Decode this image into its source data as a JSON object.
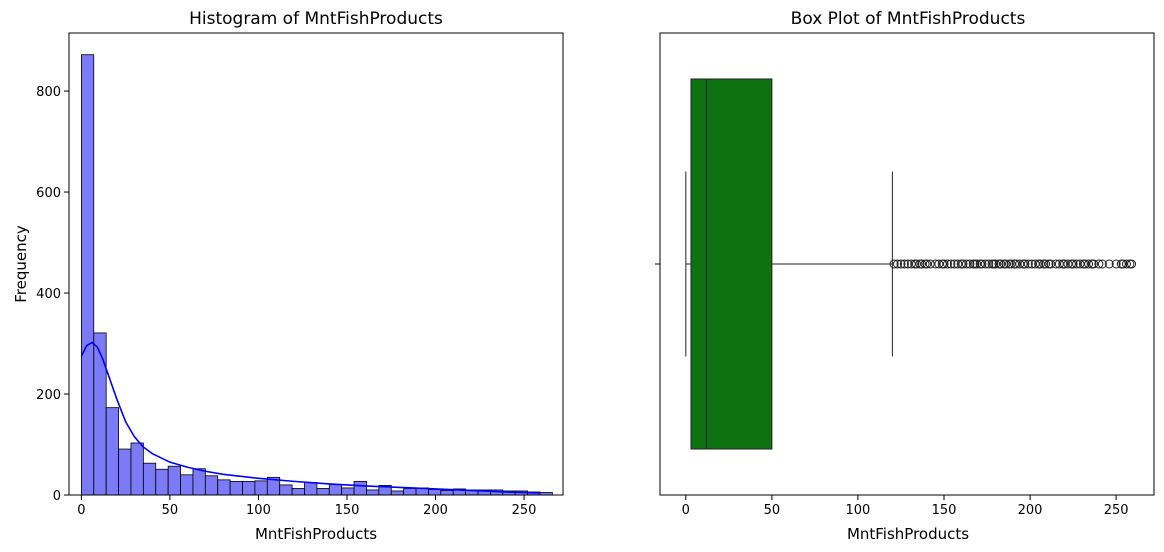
{
  "chart_data": [
    {
      "type": "histogram",
      "title": "Histogram of MntFishProducts",
      "xlabel": "MntFishProducts",
      "ylabel": "Frequency",
      "xlim": [
        -7,
        272
      ],
      "ylim": [
        0,
        915
      ],
      "x_ticks": [
        0,
        50,
        100,
        150,
        200,
        250
      ],
      "y_ticks": [
        0,
        200,
        400,
        600,
        800
      ],
      "bin_width": 7,
      "bin_start": 0,
      "values": [
        872,
        321,
        173,
        91,
        103,
        63,
        51,
        57,
        40,
        52,
        38,
        30,
        27,
        27,
        28,
        35,
        20,
        13,
        25,
        13,
        21,
        14,
        27,
        10,
        19,
        8,
        13,
        14,
        11,
        9,
        12,
        10,
        10,
        10,
        8,
        8,
        6,
        5
      ],
      "bar_color": "#7b7bf7",
      "bar_edge_color": "#000000",
      "kde": {
        "color": "#0000ff",
        "x": [
          0,
          3,
          6,
          9,
          12,
          15,
          20,
          25,
          30,
          35,
          40,
          50,
          60,
          70,
          80,
          90,
          100,
          120,
          140,
          160,
          180,
          200,
          220,
          240,
          259
        ],
        "y": [
          275,
          296,
          302,
          293,
          270,
          240,
          190,
          145,
          115,
          95,
          82,
          65,
          55,
          47,
          41,
          37,
          33,
          27,
          22,
          18,
          15,
          12,
          9,
          6,
          4
        ]
      }
    },
    {
      "type": "box",
      "title": "Box Plot of MntFishProducts",
      "xlabel": "MntFishProducts",
      "xlim": [
        -15,
        272
      ],
      "x_ticks": [
        0,
        50,
        100,
        150,
        200,
        250
      ],
      "min": 0,
      "q1": 3,
      "median": 12,
      "q3": 50,
      "whisker_high": 120,
      "box_color": "#0e7210",
      "outliers": [
        121,
        123,
        125,
        127,
        129,
        131,
        133,
        134,
        136,
        137,
        139,
        140,
        142,
        145,
        147,
        149,
        150,
        152,
        154,
        156,
        158,
        160,
        161,
        163,
        165,
        167,
        168,
        169,
        171,
        172,
        174,
        176,
        178,
        179,
        180,
        182,
        183,
        185,
        186,
        188,
        189,
        191,
        192,
        194,
        196,
        197,
        199,
        201,
        203,
        205,
        206,
        208,
        209,
        211,
        212,
        215,
        217,
        219,
        220,
        222,
        224,
        225,
        227,
        229,
        231,
        232,
        234,
        236,
        237,
        240,
        242,
        246,
        250,
        253,
        254,
        256,
        258,
        259
      ]
    }
  ]
}
